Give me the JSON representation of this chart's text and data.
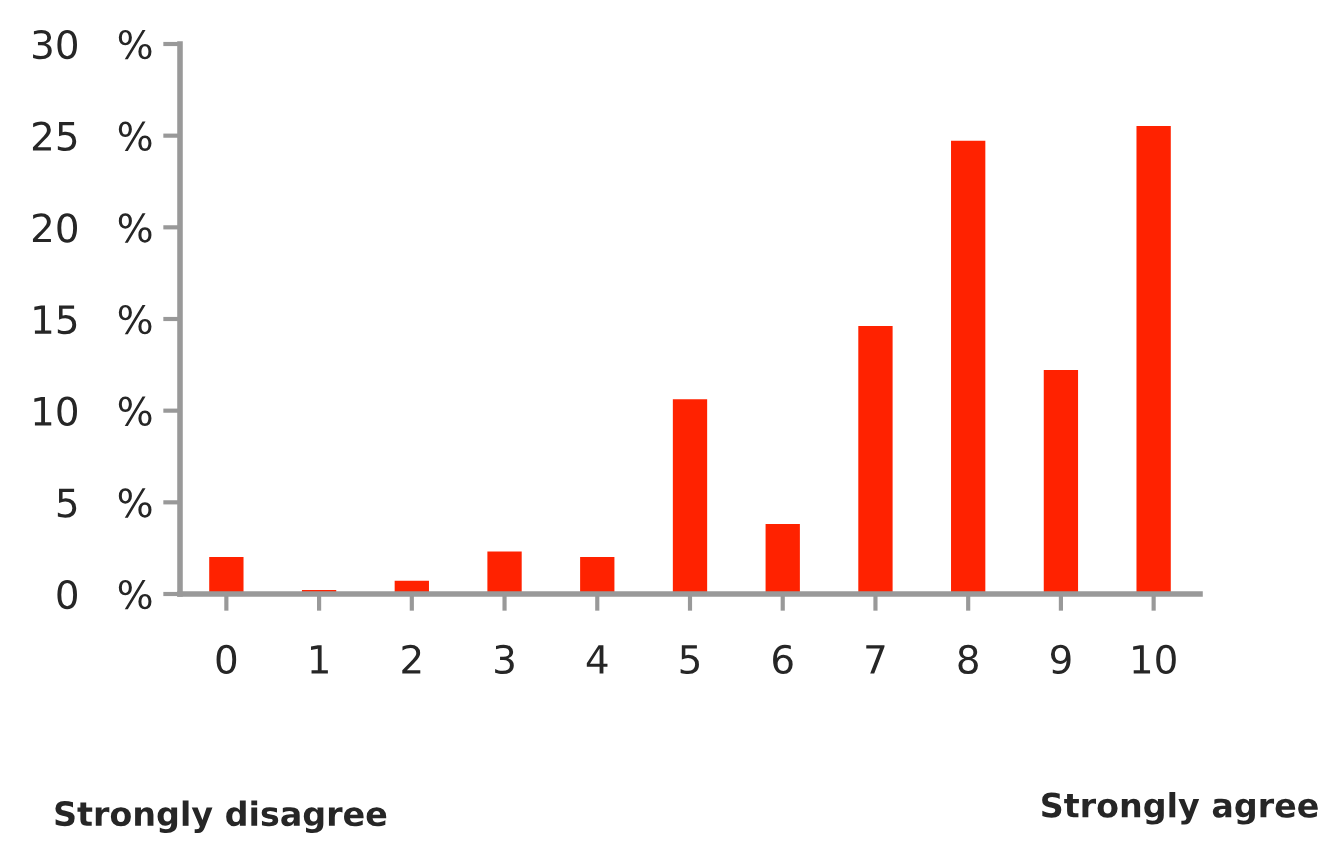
{
  "chart_data": {
    "type": "bar",
    "categories": [
      "0",
      "1",
      "2",
      "3",
      "4",
      "5",
      "6",
      "7",
      "8",
      "9",
      "10"
    ],
    "values": [
      2.1,
      0.3,
      0.8,
      2.4,
      2.1,
      10.7,
      3.9,
      14.7,
      24.8,
      12.3,
      25.6
    ],
    "color": "#ff2200",
    "ylim": [
      0,
      30
    ],
    "yticks": [
      {
        "value": 0,
        "label": "0   %"
      },
      {
        "value": 5,
        "label": "5   %"
      },
      {
        "value": 10,
        "label": "10   %"
      },
      {
        "value": 15,
        "label": "15   %"
      },
      {
        "value": 20,
        "label": "20   %"
      },
      {
        "value": 25,
        "label": "25   %"
      },
      {
        "value": 30,
        "label": "30   %"
      }
    ],
    "grid": false,
    "annotations": [
      "Strongly disagree",
      "Strongly agree"
    ]
  }
}
